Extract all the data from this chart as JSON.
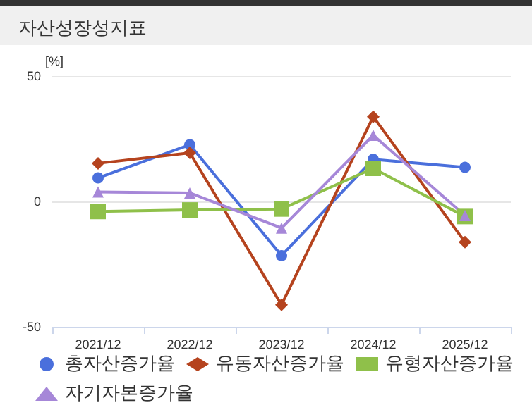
{
  "chart_data": {
    "type": "line",
    "title": "자산성장성지표",
    "ylabel": "[%]",
    "categories": [
      "2021/12",
      "2022/12",
      "2023/12",
      "2024/12",
      "2025/12"
    ],
    "series": [
      {
        "name": "총자산증가율",
        "color": "#4a6fdc",
        "marker": "circle",
        "values": [
          9.4,
          22.6,
          -21.6,
          16.8,
          13.6
        ]
      },
      {
        "name": "유동자산증가율",
        "color": "#b5431e",
        "marker": "diamond",
        "values": [
          15.2,
          19.4,
          -41.2,
          33.8,
          -16.2
        ]
      },
      {
        "name": "유형자산증가율",
        "color": "#8fc04a",
        "marker": "square",
        "values": [
          -4,
          -3.4,
          -3,
          13.2,
          -6
        ]
      },
      {
        "name": "자기자본증가율",
        "color": "#a687d8",
        "marker": "triangle",
        "values": [
          3.8,
          3.4,
          -10.6,
          26.4,
          -5.6
        ]
      }
    ],
    "ylim": [
      -50,
      50
    ],
    "yticks": [
      -50,
      0,
      50
    ],
    "grid": "y",
    "legend": "bottom"
  }
}
